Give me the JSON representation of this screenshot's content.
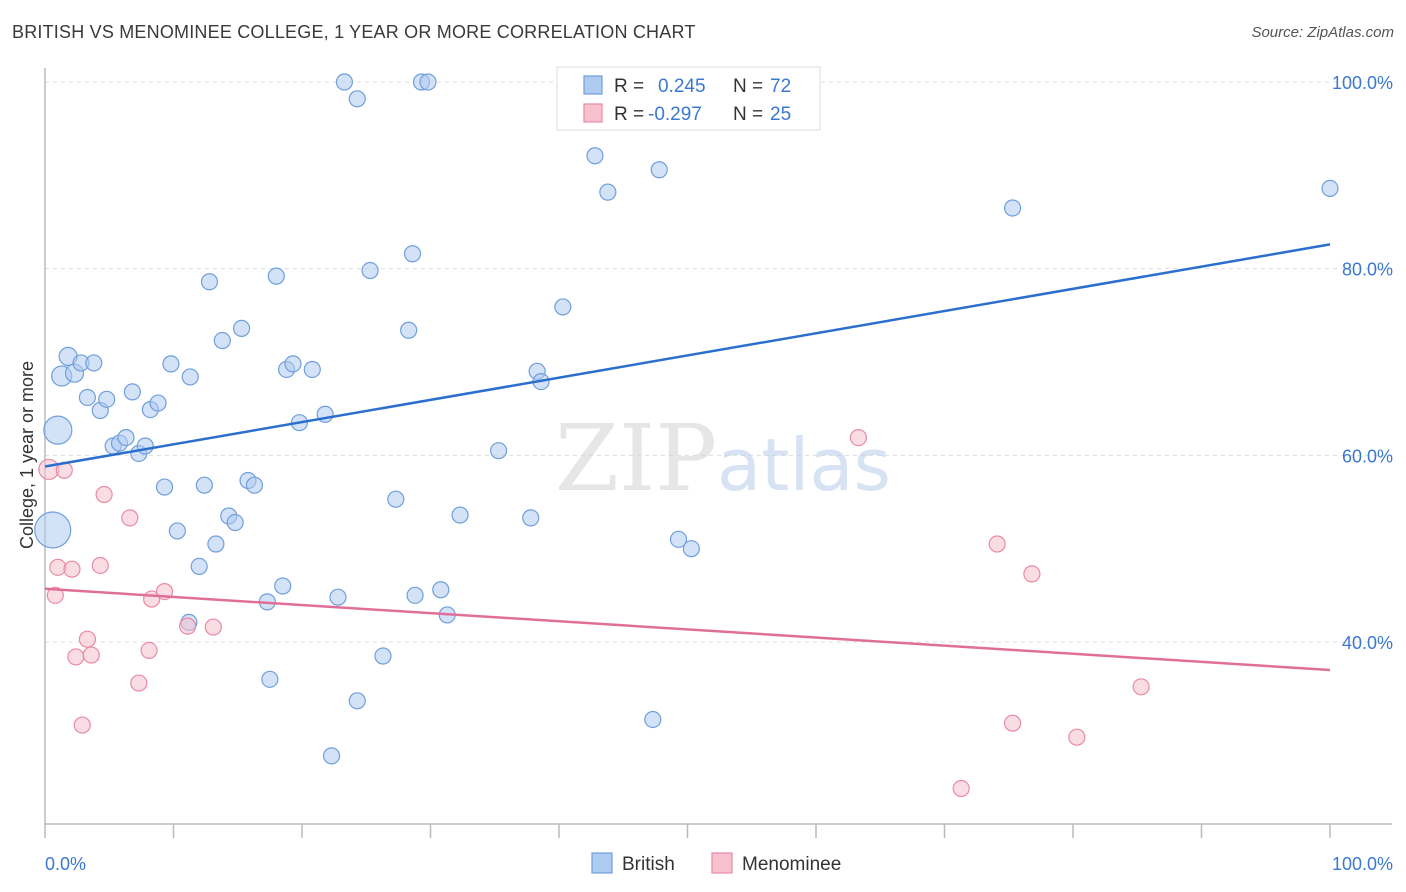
{
  "header": {
    "title": "BRITISH VS MENOMINEE COLLEGE, 1 YEAR OR MORE CORRELATION CHART",
    "source": "Source: ZipAtlas.com"
  },
  "watermark": {
    "zip": "ZIP",
    "atlas": "atlas"
  },
  "colors": {
    "british_fill": "#aecbf0",
    "british_stroke": "#6f9fdc",
    "british_line": "#2a6fce",
    "menominee_fill": "#f6c0cf",
    "menominee_stroke": "#e98aa6",
    "menominee_line": "#e06f97",
    "accent_text": "#3b78d0"
  },
  "legend": {
    "rows": [
      {
        "r_label": "R =",
        "r_value": "0.245",
        "n_label": "N =",
        "n_value": "72"
      },
      {
        "r_label": "R =",
        "r_value": "-0.297",
        "n_label": "N =",
        "n_value": "25"
      }
    ]
  },
  "chart_data": {
    "type": "scatter",
    "title": "BRITISH VS MENOMINEE COLLEGE, 1 YEAR OR MORE CORRELATION CHART",
    "xlabel": "",
    "ylabel": "College, 1 year or more",
    "xlim": [
      0,
      100
    ],
    "ylim": [
      20.5,
      101.5
    ],
    "x_tick_labels": [
      "0.0%",
      "100.0%"
    ],
    "y_ticks": [
      40,
      60,
      80,
      100
    ],
    "y_tick_labels": [
      "40.0%",
      "60.0%",
      "80.0%",
      "100.0%"
    ],
    "grid": true,
    "legend_position": "top-center and bottom-center",
    "series": [
      {
        "name": "British",
        "color": "#aecbf0",
        "trend": {
          "x": [
            0,
            100
          ],
          "y": [
            58.8,
            82.6
          ]
        },
        "points": [
          {
            "x": 0.6,
            "y": 52.0,
            "r": 18
          },
          {
            "x": 1.0,
            "y": 62.7,
            "r": 14
          },
          {
            "x": 1.3,
            "y": 68.5,
            "r": 10
          },
          {
            "x": 1.8,
            "y": 70.6,
            "r": 9
          },
          {
            "x": 2.3,
            "y": 68.8,
            "r": 9
          },
          {
            "x": 2.8,
            "y": 69.9,
            "r": 8
          },
          {
            "x": 3.3,
            "y": 66.2,
            "r": 8
          },
          {
            "x": 3.8,
            "y": 69.9,
            "r": 8
          },
          {
            "x": 4.3,
            "y": 64.8,
            "r": 8
          },
          {
            "x": 4.8,
            "y": 66.0,
            "r": 8
          },
          {
            "x": 5.3,
            "y": 61.0,
            "r": 8
          },
          {
            "x": 5.8,
            "y": 61.3,
            "r": 8
          },
          {
            "x": 6.3,
            "y": 61.9,
            "r": 8
          },
          {
            "x": 6.8,
            "y": 66.8,
            "r": 8
          },
          {
            "x": 7.3,
            "y": 60.2,
            "r": 8
          },
          {
            "x": 7.8,
            "y": 61.0,
            "r": 8
          },
          {
            "x": 8.2,
            "y": 64.9,
            "r": 8
          },
          {
            "x": 8.8,
            "y": 65.6,
            "r": 8
          },
          {
            "x": 9.3,
            "y": 56.6,
            "r": 8
          },
          {
            "x": 9.8,
            "y": 69.8,
            "r": 8
          },
          {
            "x": 10.3,
            "y": 51.9,
            "r": 8
          },
          {
            "x": 11.2,
            "y": 42.1,
            "r": 8
          },
          {
            "x": 11.3,
            "y": 68.4,
            "r": 8
          },
          {
            "x": 12.0,
            "y": 48.1,
            "r": 8
          },
          {
            "x": 12.4,
            "y": 56.8,
            "r": 8
          },
          {
            "x": 12.8,
            "y": 78.6,
            "r": 8
          },
          {
            "x": 13.3,
            "y": 50.5,
            "r": 8
          },
          {
            "x": 13.8,
            "y": 72.3,
            "r": 8
          },
          {
            "x": 14.3,
            "y": 53.5,
            "r": 8
          },
          {
            "x": 14.8,
            "y": 52.8,
            "r": 8
          },
          {
            "x": 15.3,
            "y": 73.6,
            "r": 8
          },
          {
            "x": 15.8,
            "y": 57.3,
            "r": 8
          },
          {
            "x": 16.3,
            "y": 56.8,
            "r": 8
          },
          {
            "x": 17.3,
            "y": 44.3,
            "r": 8
          },
          {
            "x": 17.5,
            "y": 36.0,
            "r": 8
          },
          {
            "x": 18.0,
            "y": 79.2,
            "r": 8
          },
          {
            "x": 18.5,
            "y": 46.0,
            "r": 8
          },
          {
            "x": 18.8,
            "y": 69.2,
            "r": 8
          },
          {
            "x": 19.3,
            "y": 69.8,
            "r": 8
          },
          {
            "x": 19.8,
            "y": 63.5,
            "r": 8
          },
          {
            "x": 20.8,
            "y": 69.2,
            "r": 8
          },
          {
            "x": 21.8,
            "y": 64.4,
            "r": 8
          },
          {
            "x": 22.3,
            "y": 27.8,
            "r": 8
          },
          {
            "x": 22.8,
            "y": 44.8,
            "r": 8
          },
          {
            "x": 23.3,
            "y": 100.0,
            "r": 8
          },
          {
            "x": 24.3,
            "y": 33.7,
            "r": 8
          },
          {
            "x": 24.3,
            "y": 98.2,
            "r": 8
          },
          {
            "x": 25.3,
            "y": 79.8,
            "r": 8
          },
          {
            "x": 26.3,
            "y": 38.5,
            "r": 8
          },
          {
            "x": 27.3,
            "y": 55.3,
            "r": 8
          },
          {
            "x": 28.3,
            "y": 73.4,
            "r": 8
          },
          {
            "x": 28.6,
            "y": 81.6,
            "r": 8
          },
          {
            "x": 28.8,
            "y": 45.0,
            "r": 8
          },
          {
            "x": 29.3,
            "y": 100.0,
            "r": 8
          },
          {
            "x": 29.8,
            "y": 100.0,
            "r": 8
          },
          {
            "x": 30.8,
            "y": 45.6,
            "r": 8
          },
          {
            "x": 31.3,
            "y": 42.9,
            "r": 8
          },
          {
            "x": 32.3,
            "y": 53.6,
            "r": 8
          },
          {
            "x": 35.3,
            "y": 60.5,
            "r": 8
          },
          {
            "x": 37.8,
            "y": 53.3,
            "r": 8
          },
          {
            "x": 38.3,
            "y": 69.0,
            "r": 8
          },
          {
            "x": 38.6,
            "y": 67.9,
            "r": 8
          },
          {
            "x": 40.3,
            "y": 75.9,
            "r": 8
          },
          {
            "x": 42.8,
            "y": 92.1,
            "r": 8
          },
          {
            "x": 43.8,
            "y": 88.2,
            "r": 8
          },
          {
            "x": 47.3,
            "y": 31.7,
            "r": 8
          },
          {
            "x": 47.8,
            "y": 90.6,
            "r": 8
          },
          {
            "x": 49.3,
            "y": 51.0,
            "r": 8
          },
          {
            "x": 50.3,
            "y": 50.0,
            "r": 8
          },
          {
            "x": 52.3,
            "y": 100.0,
            "r": 8
          },
          {
            "x": 75.3,
            "y": 86.5,
            "r": 8
          },
          {
            "x": 100.0,
            "y": 88.6,
            "r": 8
          }
        ]
      },
      {
        "name": "Menominee",
        "color": "#f6c0cf",
        "trend": {
          "x": [
            0,
            100
          ],
          "y": [
            45.7,
            37.0
          ]
        },
        "points": [
          {
            "x": 0.3,
            "y": 58.5,
            "r": 10
          },
          {
            "x": 0.8,
            "y": 45.0,
            "r": 8
          },
          {
            "x": 1.0,
            "y": 48.0,
            "r": 8
          },
          {
            "x": 1.5,
            "y": 58.4,
            "r": 8
          },
          {
            "x": 2.1,
            "y": 47.8,
            "r": 8
          },
          {
            "x": 2.4,
            "y": 38.4,
            "r": 8
          },
          {
            "x": 2.9,
            "y": 31.1,
            "r": 8
          },
          {
            "x": 3.3,
            "y": 40.3,
            "r": 8
          },
          {
            "x": 3.6,
            "y": 38.6,
            "r": 8
          },
          {
            "x": 4.3,
            "y": 48.2,
            "r": 8
          },
          {
            "x": 4.6,
            "y": 55.8,
            "r": 8
          },
          {
            "x": 6.6,
            "y": 53.3,
            "r": 8
          },
          {
            "x": 7.3,
            "y": 35.6,
            "r": 8
          },
          {
            "x": 8.1,
            "y": 39.1,
            "r": 8
          },
          {
            "x": 8.3,
            "y": 44.6,
            "r": 8
          },
          {
            "x": 9.3,
            "y": 45.4,
            "r": 8
          },
          {
            "x": 11.1,
            "y": 41.7,
            "r": 8
          },
          {
            "x": 13.1,
            "y": 41.6,
            "r": 8
          },
          {
            "x": 63.3,
            "y": 61.9,
            "r": 8
          },
          {
            "x": 71.3,
            "y": 24.3,
            "r": 8
          },
          {
            "x": 74.1,
            "y": 50.5,
            "r": 8
          },
          {
            "x": 75.3,
            "y": 31.3,
            "r": 8
          },
          {
            "x": 76.8,
            "y": 47.3,
            "r": 8
          },
          {
            "x": 80.3,
            "y": 29.8,
            "r": 8
          },
          {
            "x": 85.3,
            "y": 35.2,
            "r": 8
          }
        ]
      }
    ]
  },
  "bottom_legend": {
    "british": "British",
    "menominee": "Menominee"
  }
}
